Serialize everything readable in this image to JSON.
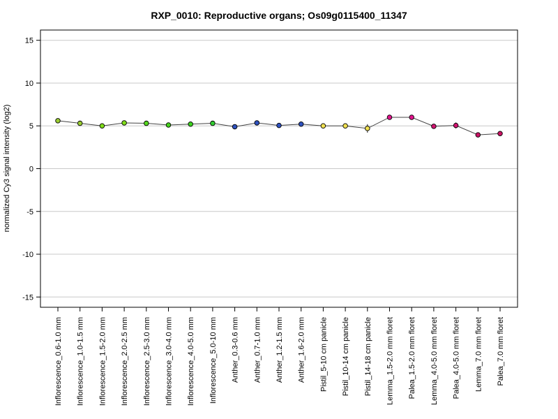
{
  "chart_data": {
    "type": "line",
    "title": "RXP_0010: Reproductive organs; Os09g0115400_11347",
    "ylabel": "normalized Cy3 signal intensity (log2)",
    "xlabel": "",
    "ylim": [
      -16.2,
      16.2
    ],
    "yticks": [
      -15,
      -10,
      -5,
      0,
      5,
      10,
      15
    ],
    "grid": "horizontal",
    "categories": [
      "Inflorescence_0.6-1.0 mm",
      "Inflorescence_1.0-1.5 mm",
      "Inflorescence_1.5-2.0 mm",
      "Inflorescence_2.0-2.5 mm",
      "Inflorescence_2.5-3.0 mm",
      "Inflorescence_3.0-4.0 mm",
      "Inflorescence_4.0-5.0 mm",
      "Inflorescence_5.0-10 mm",
      "Anther_0.3-0.6 mm",
      "Anther_0.7-1.0 mm",
      "Anther_1.2-1.5 mm",
      "Anther_1.6-2.0 mm",
      "Pistil_5-10 cm panicle",
      "Pistil_10-14 cm panicle",
      "Pistil_14-18 cm panicle",
      "Lemma_1.5-2.0 mm floret",
      "Palea_1.5-2.0 mm floret",
      "Lemma_4.0-5.0 mm floret",
      "Palea_4.0-5.0 mm floret",
      "Lemma_7.0 mm floret",
      "Palea_7.0 mm floret"
    ],
    "values": [
      5.6,
      5.3,
      5.0,
      5.35,
      5.3,
      5.1,
      5.2,
      5.3,
      4.9,
      5.35,
      5.05,
      5.2,
      5.0,
      5.0,
      4.7,
      6.0,
      6.0,
      4.95,
      5.05,
      3.95,
      4.1
    ],
    "errors": [
      0.15,
      0.1,
      0.1,
      0.12,
      0.12,
      0.1,
      0.1,
      0.1,
      0.1,
      0.15,
      0.12,
      0.2,
      0.15,
      0.12,
      0.5,
      0.15,
      0.1,
      0.15,
      0.35,
      0.15,
      0.2
    ],
    "colors": [
      "#9acd32",
      "#9acd32",
      "#7fdd1a",
      "#7fdd1a",
      "#55d81e",
      "#46d21e",
      "#3cd21e",
      "#32cd32",
      "#2f52bf",
      "#2f52bf",
      "#2f52bf",
      "#2f52bf",
      "#f0e050",
      "#f0e050",
      "#f0e050",
      "#e0148c",
      "#e0148c",
      "#d01470",
      "#d01470",
      "#c81464",
      "#c81464"
    ],
    "line_color": "#444444"
  }
}
